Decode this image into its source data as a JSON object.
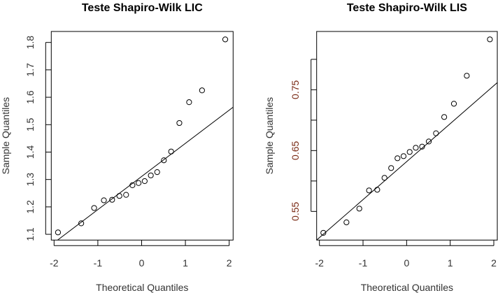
{
  "chart_data": [
    {
      "type": "scatter",
      "title": "Teste Shapiro-Wilk LIC",
      "xlabel": "Theoretical Quantiles",
      "ylabel": "Sample Quantiles",
      "xlim": [
        -2.064,
        2.09
      ],
      "ylim": [
        1.079,
        1.84
      ],
      "xticks": [
        -2,
        -1,
        0,
        1,
        2
      ],
      "xtick_labels": [
        "-2",
        "-1",
        "0",
        "1",
        "2"
      ],
      "yticks": [
        1.1,
        1.2,
        1.3,
        1.4,
        1.5,
        1.6,
        1.7,
        1.8
      ],
      "ytick_labels": [
        "1.1",
        "1.2",
        "1.3",
        "1.4",
        "1.5",
        "1.6",
        "1.7",
        "1.8"
      ],
      "tick_label_color": "#333333",
      "x": [
        -1.91,
        -1.38,
        -1.085,
        -0.862,
        -0.674,
        -0.508,
        -0.355,
        -0.21,
        -0.07,
        0.07,
        0.21,
        0.355,
        0.508,
        0.674,
        0.862,
        1.085,
        1.38,
        1.91
      ],
      "y": [
        1.107,
        1.14,
        1.196,
        1.224,
        1.226,
        1.24,
        1.244,
        1.279,
        1.287,
        1.294,
        1.315,
        1.327,
        1.37,
        1.402,
        1.506,
        1.582,
        1.625,
        1.811
      ],
      "qqline": {
        "intercept": 1.311,
        "slope": 0.1209
      }
    },
    {
      "type": "scatter",
      "title": "Teste Shapiro-Wilk LIS",
      "xlabel": "Theoretical Quantiles",
      "ylabel": "Sample Quantiles",
      "xlim": [
        -2.064,
        2.08
      ],
      "ylim": [
        0.5029,
        0.8458
      ],
      "xticks": [
        -2,
        -1,
        0,
        1,
        2
      ],
      "xtick_labels": [
        "-2",
        "-1",
        "0",
        "1",
        "2"
      ],
      "yticks": [
        0.55,
        0.6,
        0.65,
        0.7,
        0.75,
        0.8
      ],
      "ytick_labels": [
        "0.55",
        "",
        "0.65",
        "",
        "0.75",
        ""
      ],
      "tick_label_color": "#7a2a14",
      "x": [
        -1.91,
        -1.38,
        -1.085,
        -0.862,
        -0.674,
        -0.508,
        -0.355,
        -0.21,
        -0.07,
        0.07,
        0.21,
        0.355,
        0.508,
        0.674,
        0.862,
        1.085,
        1.38,
        1.91
      ],
      "y": [
        0.5148,
        0.532,
        0.5546,
        0.5845,
        0.5856,
        0.6052,
        0.6213,
        0.6374,
        0.6408,
        0.6477,
        0.6546,
        0.6565,
        0.6649,
        0.6784,
        0.7052,
        0.727,
        0.773,
        0.8328
      ],
      "qqline": {
        "intercept": 0.6318,
        "slope": 0.06245
      }
    }
  ]
}
